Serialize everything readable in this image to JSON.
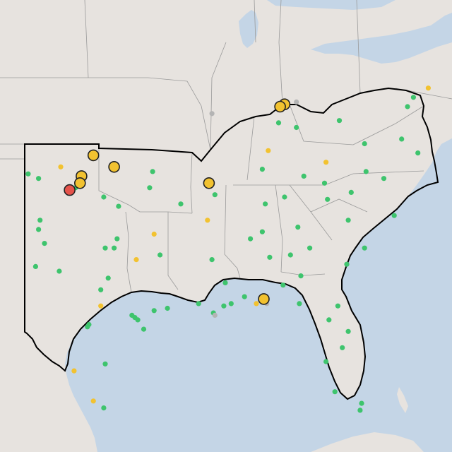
{
  "map": {
    "colors": {
      "land": "#e7e3df",
      "water": "#c4d5e6",
      "state_border": "#9a9a9a",
      "region_outline": "#000000",
      "marker_green": "#3ec46d",
      "marker_yellow": "#f2c230",
      "marker_red": "#e5534b",
      "marker_gray": "#b4b4b4",
      "marker_stroke": "#222222"
    },
    "small_markers": [
      {
        "lat": 36.0,
        "lon": -102.6,
        "status": "green"
      },
      {
        "lat": 35.8,
        "lon": -101.9,
        "status": "green"
      },
      {
        "lat": 36.3,
        "lon": -100.4,
        "status": "yellow"
      },
      {
        "lat": 35.4,
        "lon": -99.4,
        "status": "green"
      },
      {
        "lat": 35.0,
        "lon": -97.5,
        "status": "green"
      },
      {
        "lat": 34.6,
        "lon": -96.5,
        "status": "green"
      },
      {
        "lat": 34.0,
        "lon": -101.8,
        "status": "green"
      },
      {
        "lat": 33.6,
        "lon": -101.9,
        "status": "green"
      },
      {
        "lat": 33.0,
        "lon": -101.5,
        "status": "green"
      },
      {
        "lat": 32.8,
        "lon": -97.4,
        "status": "green"
      },
      {
        "lat": 32.8,
        "lon": -96.8,
        "status": "green"
      },
      {
        "lat": 33.2,
        "lon": -96.6,
        "status": "green"
      },
      {
        "lat": 32.3,
        "lon": -95.3,
        "status": "yellow"
      },
      {
        "lat": 32.0,
        "lon": -102.1,
        "status": "green"
      },
      {
        "lat": 31.8,
        "lon": -100.5,
        "status": "green"
      },
      {
        "lat": 31.5,
        "lon": -97.2,
        "status": "green"
      },
      {
        "lat": 31.0,
        "lon": -97.7,
        "status": "green"
      },
      {
        "lat": 30.3,
        "lon": -97.7,
        "status": "yellow"
      },
      {
        "lat": 29.5,
        "lon": -98.5,
        "status": "green"
      },
      {
        "lat": 29.4,
        "lon": -98.6,
        "status": "green"
      },
      {
        "lat": 29.8,
        "lon": -95.4,
        "status": "green"
      },
      {
        "lat": 29.7,
        "lon": -95.2,
        "status": "green"
      },
      {
        "lat": 29.9,
        "lon": -95.6,
        "status": "green"
      },
      {
        "lat": 29.3,
        "lon": -94.8,
        "status": "green"
      },
      {
        "lat": 30.1,
        "lon": -94.1,
        "status": "green"
      },
      {
        "lat": 27.8,
        "lon": -97.4,
        "status": "green"
      },
      {
        "lat": 27.5,
        "lon": -99.5,
        "status": "yellow"
      },
      {
        "lat": 26.2,
        "lon": -98.2,
        "status": "yellow"
      },
      {
        "lat": 25.9,
        "lon": -97.5,
        "status": "green"
      },
      {
        "lat": 32.5,
        "lon": -93.7,
        "status": "green"
      },
      {
        "lat": 30.2,
        "lon": -93.2,
        "status": "green"
      },
      {
        "lat": 30.4,
        "lon": -91.1,
        "status": "green"
      },
      {
        "lat": 30.0,
        "lon": -90.1,
        "status": "green"
      },
      {
        "lat": 29.9,
        "lon": -90.0,
        "status": "gray"
      },
      {
        "lat": 30.3,
        "lon": -89.4,
        "status": "green"
      },
      {
        "lat": 30.4,
        "lon": -88.9,
        "status": "green"
      },
      {
        "lat": 30.7,
        "lon": -88.0,
        "status": "green"
      },
      {
        "lat": 32.3,
        "lon": -90.2,
        "status": "green"
      },
      {
        "lat": 31.3,
        "lon": -89.3,
        "status": "green"
      },
      {
        "lat": 34.7,
        "lon": -92.3,
        "status": "green"
      },
      {
        "lat": 35.1,
        "lon": -90.0,
        "status": "green"
      },
      {
        "lat": 36.1,
        "lon": -94.2,
        "status": "green"
      },
      {
        "lat": 35.4,
        "lon": -94.4,
        "status": "green"
      },
      {
        "lat": 33.4,
        "lon": -94.1,
        "status": "yellow"
      },
      {
        "lat": 34.0,
        "lon": -90.5,
        "status": "yellow"
      },
      {
        "lat": 33.5,
        "lon": -86.8,
        "status": "green"
      },
      {
        "lat": 32.4,
        "lon": -86.3,
        "status": "green"
      },
      {
        "lat": 34.7,
        "lon": -86.6,
        "status": "green"
      },
      {
        "lat": 33.2,
        "lon": -87.6,
        "status": "green"
      },
      {
        "lat": 31.2,
        "lon": -85.4,
        "status": "green"
      },
      {
        "lat": 33.7,
        "lon": -84.4,
        "status": "green"
      },
      {
        "lat": 32.5,
        "lon": -84.9,
        "status": "green"
      },
      {
        "lat": 32.8,
        "lon": -83.6,
        "status": "green"
      },
      {
        "lat": 32.1,
        "lon": -81.1,
        "status": "green"
      },
      {
        "lat": 31.6,
        "lon": -84.2,
        "status": "green"
      },
      {
        "lat": 34.0,
        "lon": -81.0,
        "status": "green"
      },
      {
        "lat": 32.8,
        "lon": -79.9,
        "status": "green"
      },
      {
        "lat": 34.9,
        "lon": -82.4,
        "status": "green"
      },
      {
        "lat": 35.2,
        "lon": -80.8,
        "status": "green"
      },
      {
        "lat": 35.8,
        "lon": -78.6,
        "status": "green"
      },
      {
        "lat": 36.1,
        "lon": -79.8,
        "status": "green"
      },
      {
        "lat": 35.6,
        "lon": -82.6,
        "status": "green"
      },
      {
        "lat": 34.2,
        "lon": -77.9,
        "status": "green"
      },
      {
        "lat": 36.2,
        "lon": -86.8,
        "status": "green"
      },
      {
        "lat": 35.9,
        "lon": -84.0,
        "status": "green"
      },
      {
        "lat": 35.0,
        "lon": -85.3,
        "status": "green"
      },
      {
        "lat": 36.5,
        "lon": -82.5,
        "status": "yellow"
      },
      {
        "lat": 38.2,
        "lon": -85.7,
        "status": "green"
      },
      {
        "lat": 38.0,
        "lon": -84.5,
        "status": "green"
      },
      {
        "lat": 37.0,
        "lon": -86.4,
        "status": "yellow"
      },
      {
        "lat": 37.5,
        "lon": -77.4,
        "status": "green"
      },
      {
        "lat": 36.9,
        "lon": -76.3,
        "status": "green"
      },
      {
        "lat": 37.3,
        "lon": -79.9,
        "status": "green"
      },
      {
        "lat": 38.3,
        "lon": -81.6,
        "status": "green"
      },
      {
        "lat": 39.3,
        "lon": -76.6,
        "status": "green"
      },
      {
        "lat": 38.9,
        "lon": -77.0,
        "status": "green"
      },
      {
        "lat": 39.7,
        "lon": -75.6,
        "status": "yellow"
      },
      {
        "lat": 30.3,
        "lon": -81.7,
        "status": "green"
      },
      {
        "lat": 29.7,
        "lon": -82.3,
        "status": "green"
      },
      {
        "lat": 28.5,
        "lon": -81.4,
        "status": "green"
      },
      {
        "lat": 27.9,
        "lon": -82.5,
        "status": "green"
      },
      {
        "lat": 26.6,
        "lon": -81.9,
        "status": "green"
      },
      {
        "lat": 26.1,
        "lon": -80.1,
        "status": "green"
      },
      {
        "lat": 25.8,
        "lon": -80.2,
        "status": "green"
      },
      {
        "lat": 30.4,
        "lon": -84.3,
        "status": "green"
      },
      {
        "lat": 30.4,
        "lon": -87.2,
        "status": "yellow"
      },
      {
        "lat": 29.2,
        "lon": -81.0,
        "status": "green"
      },
      {
        "lat": 30.4,
        "lon": -86.5,
        "status": "gray"
      },
      {
        "lat": 38.6,
        "lon": -90.2,
        "status": "gray"
      },
      {
        "lat": 39.1,
        "lon": -84.5,
        "status": "gray"
      }
    ],
    "large_markers": [
      {
        "lat": 36.8,
        "lon": -98.2,
        "status": "yellow"
      },
      {
        "lat": 35.9,
        "lon": -99.0,
        "status": "yellow"
      },
      {
        "lat": 35.6,
        "lon": -99.1,
        "status": "yellow"
      },
      {
        "lat": 36.3,
        "lon": -96.8,
        "status": "yellow"
      },
      {
        "lat": 35.3,
        "lon": -99.8,
        "status": "red"
      },
      {
        "lat": 39.0,
        "lon": -85.3,
        "status": "yellow"
      },
      {
        "lat": 38.9,
        "lon": -85.6,
        "status": "yellow"
      },
      {
        "lat": 35.6,
        "lon": -90.4,
        "status": "yellow"
      },
      {
        "lat": 30.6,
        "lon": -86.7,
        "status": "yellow"
      }
    ]
  }
}
